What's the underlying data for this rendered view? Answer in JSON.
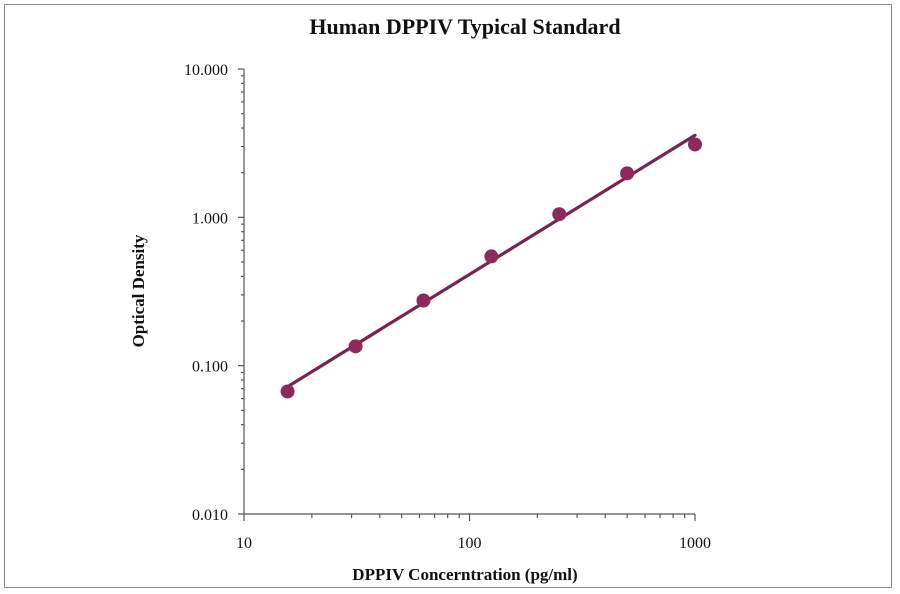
{
  "chart_data": {
    "type": "scatter",
    "title": "Human DPPIV Typical Standard",
    "xlabel": "DPPIV Concerntration (pg/ml)",
    "ylabel": "Optical Density",
    "x_scale": "log",
    "y_scale": "log",
    "xlim": [
      10,
      1000
    ],
    "ylim": [
      0.01,
      10
    ],
    "x_ticks": [
      10,
      100,
      1000
    ],
    "x_tick_labels": [
      "10",
      "100",
      "1000"
    ],
    "y_ticks": [
      0.01,
      0.1,
      1,
      10
    ],
    "y_tick_labels": [
      "0.010",
      "0.100",
      "1.000",
      "10.000"
    ],
    "grid": false,
    "legend": "none",
    "series": [
      {
        "x": [
          15.6,
          31.25,
          62.5,
          125,
          250,
          500,
          1000
        ],
        "y": [
          0.067,
          0.135,
          0.275,
          0.545,
          1.05,
          1.98,
          3.1
        ],
        "color": "#8e2a5b",
        "marker": "circle",
        "fit_line": true,
        "line_color": "#7a2350"
      }
    ]
  }
}
